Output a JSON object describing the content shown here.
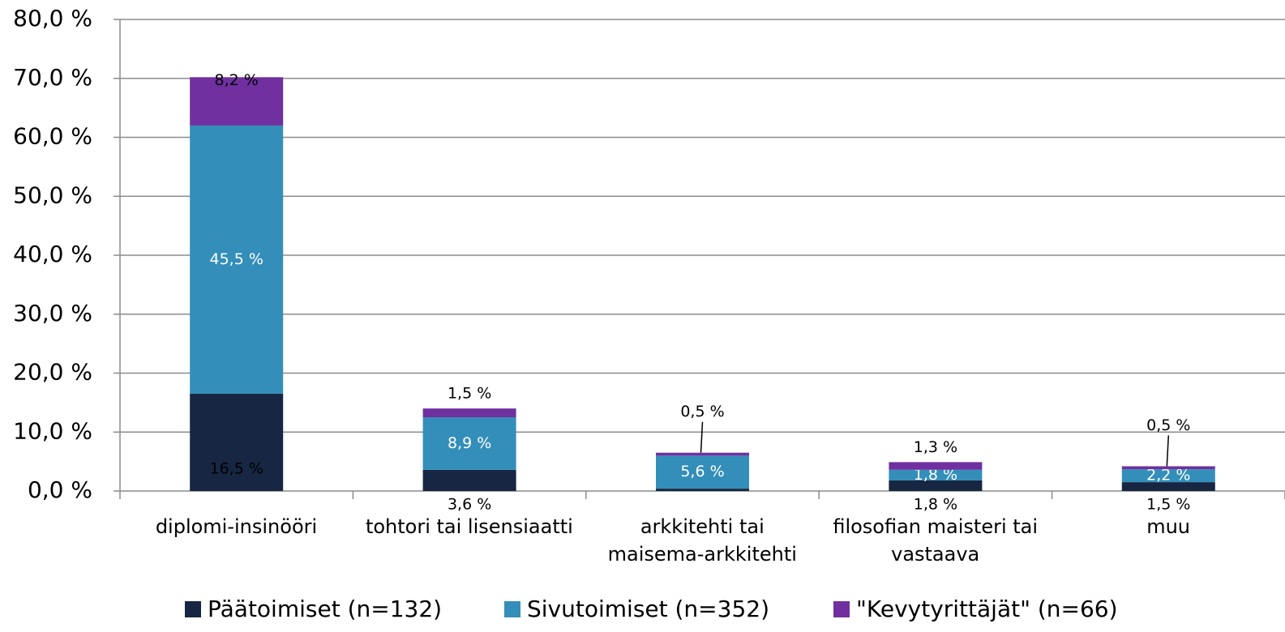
{
  "chart_data": {
    "type": "stacked_bar",
    "categories": [
      "diplomi-insinööri",
      "tohtori tai lisensiaatti",
      "arkkitehti tai\nmaisema-arkkitehti",
      "filosofian maisteri tai\nvastaava",
      "muu"
    ],
    "series": [
      {
        "name": "Päätoimiset (n=132)",
        "color": "#172642",
        "values": [
          16.5,
          3.6,
          0.4,
          1.8,
          1.5
        ],
        "value_labels": [
          "16,5 %",
          "3,6 %",
          null,
          "1,8 %",
          "1,5 %"
        ]
      },
      {
        "name": "Sivutoimiset (n=352)",
        "color": "#338eb9",
        "values": [
          45.5,
          8.9,
          5.6,
          1.8,
          2.2
        ],
        "value_labels": [
          "45,5 %",
          "8,9 %",
          "5,6 %",
          "1,8 %",
          "2,2 %"
        ]
      },
      {
        "name": "\"Kevytyrittäjät\" (n=66)",
        "color": "#7030a0",
        "values": [
          8.2,
          1.5,
          0.5,
          1.3,
          0.5
        ],
        "value_labels": [
          "8,2 %",
          "1,5 %",
          "0,5 %",
          "1,3 %",
          "0,5 %"
        ]
      }
    ],
    "ylim": [
      0,
      80
    ],
    "yticks": [
      {
        "value": 0,
        "label": "0,0 %"
      },
      {
        "value": 10,
        "label": "10,0 %"
      },
      {
        "value": 20,
        "label": "20,0 %"
      },
      {
        "value": 30,
        "label": "30,0 %"
      },
      {
        "value": 40,
        "label": "40,0 %"
      },
      {
        "value": 50,
        "label": "50,0 %"
      },
      {
        "value": 60,
        "label": "60,0 %"
      },
      {
        "value": 70,
        "label": "70,0 %"
      },
      {
        "value": 80,
        "label": "80,0 %"
      }
    ],
    "grid": true,
    "legend": "bottom"
  }
}
